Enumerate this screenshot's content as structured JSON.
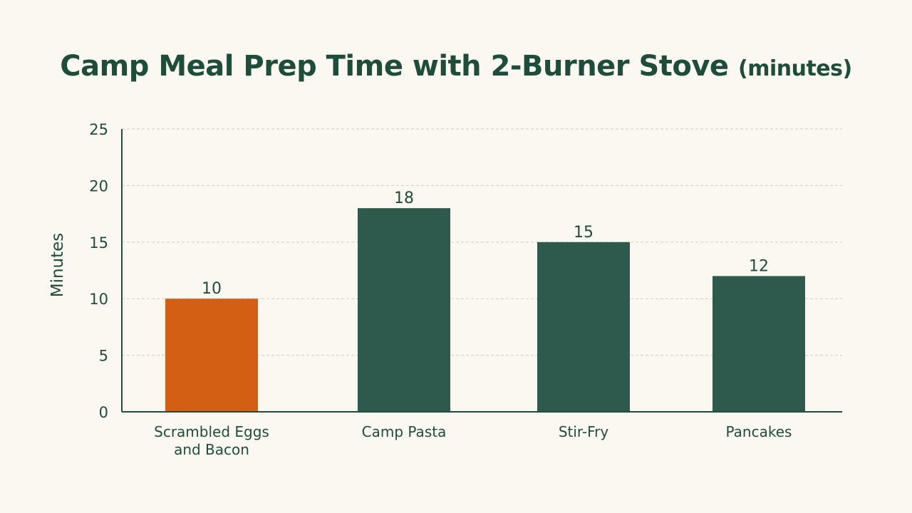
{
  "colors": {
    "background": "#faf8f1",
    "text": "#1f4d3c",
    "bar_default": "#2d5a4d",
    "bar_highlight": "#d35f14",
    "grid": "#d6d3cb",
    "axis": "#1f4d3c"
  },
  "chart_data": {
    "type": "bar",
    "title": "Camp Meal Prep Time with 2-Burner Stove",
    "title_suffix": "(minutes)",
    "xlabel": "",
    "ylabel": "Minutes",
    "categories": [
      "Scrambled Eggs and Bacon",
      "Camp Pasta",
      "Stir-Fry",
      "Pancakes"
    ],
    "category_lines": [
      [
        "Scrambled Eggs",
        "and Bacon"
      ],
      [
        "Camp Pasta"
      ],
      [
        "Stir-Fry"
      ],
      [
        "Pancakes"
      ]
    ],
    "values": [
      10,
      18,
      15,
      12
    ],
    "highlight_index": 0,
    "ylim": [
      0,
      25
    ],
    "yticks": [
      0,
      5,
      10,
      15,
      20,
      25
    ],
    "grid": true,
    "grid_style": "dashed",
    "data_labels": true,
    "legend": "none"
  }
}
